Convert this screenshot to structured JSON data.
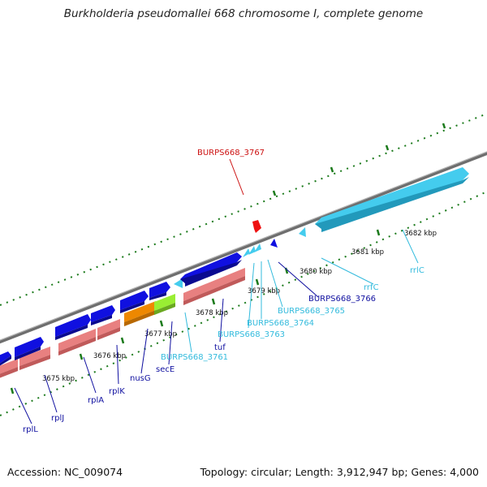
{
  "title": "Burkholderia pseudomallei 668 chromosome I, complete genome",
  "footer": {
    "accession": "Accession: NC_009074",
    "topology": "Topology: circular; Length: 3,912,947 bp; Genes: 4,000"
  },
  "colors": {
    "backbone": "#7f7f7f",
    "tick": "#1b7a1b",
    "gene_label": "#1010a0",
    "rna_label": "#33bbdd",
    "pseudo_label": "#cc1111",
    "cds_forward": "#1010e0",
    "cds_light": "#44ccee",
    "protein_bar": "#e88080",
    "orange_bar": "#ee8800",
    "green_bar": "#99ee33",
    "red_marker": "#ee1111"
  },
  "kbp_ticks": [
    "3675 kbp",
    "3676 kbp",
    "3677 kbp",
    "3678 kbp",
    "3679 kbp",
    "3680 kbp",
    "3681 kbp",
    "3682 kbp"
  ],
  "gene_labels": {
    "burps3767": "BURPS668_3767",
    "burps3766": "BURPS668_3766",
    "rrfC": "rrfC",
    "rrlC": "rrlC",
    "burps3765": "BURPS668_3765",
    "burps3764": "BURPS668_3764",
    "burps3763": "BURPS668_3763",
    "tuf": "tuf",
    "burps3761": "BURPS668_3761",
    "secE": "secE",
    "nusG": "nusG",
    "rplK": "rplK",
    "rplA": "rplA",
    "rplJ": "rplJ",
    "rplL": "rplL"
  }
}
